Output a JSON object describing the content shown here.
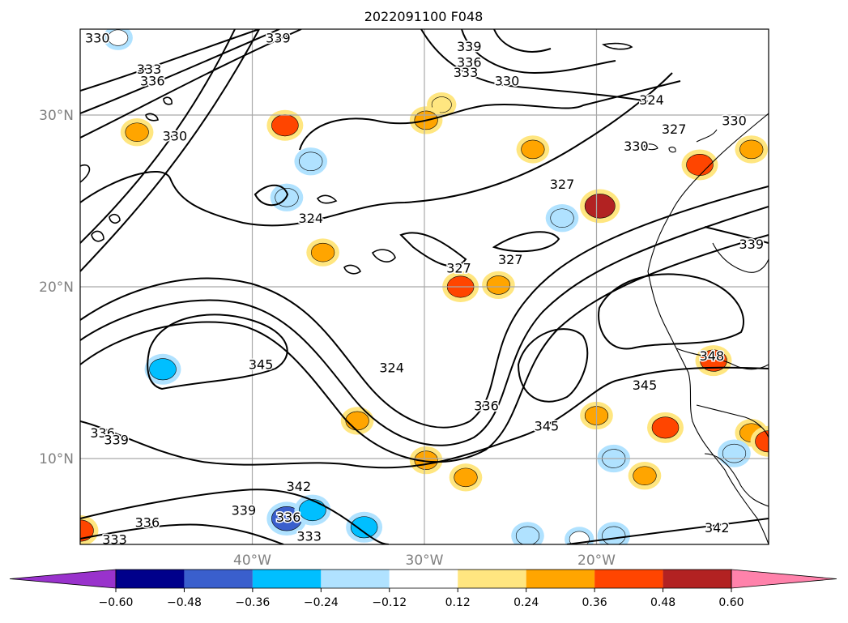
{
  "chart_data": {
    "type": "heatmap",
    "title": "2022091100 F048",
    "map_kind": "filled contour map with overlaid line contours and coastlines",
    "lon_range": [
      -50,
      -10
    ],
    "lat_range": [
      5,
      35
    ],
    "grid": true,
    "lon_ticks": [
      {
        "value": -40,
        "label": "40°W"
      },
      {
        "value": -30,
        "label": "30°W"
      },
      {
        "value": -20,
        "label": "20°W"
      }
    ],
    "lat_ticks": [
      {
        "value": 30,
        "label": "30°N"
      },
      {
        "value": 20,
        "label": "20°N"
      },
      {
        "value": 10,
        "label": "10°N"
      }
    ],
    "colorbar": {
      "orientation": "horizontal",
      "location": "bottom",
      "extend": "both",
      "boundaries": [
        -0.6,
        -0.48,
        -0.36,
        -0.24,
        -0.12,
        0.12,
        0.24,
        0.36,
        0.48,
        0.6
      ],
      "tick_labels": [
        "−0.60",
        "−0.48",
        "−0.36",
        "−0.24",
        "−0.12",
        "0.12",
        "0.24",
        "0.36",
        "0.48",
        "0.60"
      ],
      "colors": [
        "#9932cc",
        "#00008b",
        "#3a5fcd",
        "#00bfff",
        "#b0e2ff",
        "#ffffff",
        "#ffe680",
        "#ffa500",
        "#ff4500",
        "#b22222",
        "#ff82ab"
      ]
    },
    "contour_lines": [
      {
        "label": "330",
        "lon": -49.0,
        "lat": 34.5
      },
      {
        "label": "339",
        "lon": -38.5,
        "lat": 34.5
      },
      {
        "label": "333",
        "lon": -46.0,
        "lat": 32.7
      },
      {
        "label": "336",
        "lon": -45.8,
        "lat": 32.0
      },
      {
        "label": "330",
        "lon": -44.5,
        "lat": 28.8
      },
      {
        "label": "339",
        "lon": -27.4,
        "lat": 34.0
      },
      {
        "label": "336",
        "lon": -27.4,
        "lat": 33.1
      },
      {
        "label": "333",
        "lon": -27.6,
        "lat": 32.5
      },
      {
        "label": "330",
        "lon": -25.2,
        "lat": 32.0
      },
      {
        "label": "324",
        "lon": -16.8,
        "lat": 30.9
      },
      {
        "label": "327",
        "lon": -15.5,
        "lat": 29.2
      },
      {
        "label": "330",
        "lon": -17.7,
        "lat": 28.2
      },
      {
        "label": "330",
        "lon": -12.0,
        "lat": 29.7
      },
      {
        "label": "327",
        "lon": -22.0,
        "lat": 26.0
      },
      {
        "label": "324",
        "lon": -36.6,
        "lat": 24.0
      },
      {
        "label": "339",
        "lon": -11.0,
        "lat": 22.5
      },
      {
        "label": "327",
        "lon": -28.0,
        "lat": 21.1
      },
      {
        "label": "327",
        "lon": -25.0,
        "lat": 21.6
      },
      {
        "label": "345",
        "lon": -39.5,
        "lat": 15.5
      },
      {
        "label": "324",
        "lon": -31.9,
        "lat": 15.3
      },
      {
        "label": "348",
        "lon": -13.3,
        "lat": 16.0
      },
      {
        "label": "345",
        "lon": -17.2,
        "lat": 14.3
      },
      {
        "label": "336",
        "lon": -26.4,
        "lat": 13.1
      },
      {
        "label": "345",
        "lon": -22.9,
        "lat": 11.9
      },
      {
        "label": "336",
        "lon": -48.7,
        "lat": 11.5
      },
      {
        "label": "339",
        "lon": -47.9,
        "lat": 11.1
      },
      {
        "label": "342",
        "lon": -37.3,
        "lat": 8.4
      },
      {
        "label": "339",
        "lon": -40.5,
        "lat": 7.0
      },
      {
        "label": "336",
        "lon": -46.1,
        "lat": 6.3
      },
      {
        "label": "336",
        "lon": -37.9,
        "lat": 6.6
      },
      {
        "label": "333",
        "lon": -36.7,
        "lat": 5.5
      },
      {
        "label": "333",
        "lon": -48.0,
        "lat": 5.3
      },
      {
        "label": "342",
        "lon": -13.0,
        "lat": 6.0
      }
    ],
    "shaded_anomalies": [
      {
        "lon": -38.1,
        "lat": 29.4,
        "value": 0.36
      },
      {
        "lon": -46.7,
        "lat": 29.0,
        "value": 0.24
      },
      {
        "lon": -29.0,
        "lat": 30.6,
        "value": 0.12
      },
      {
        "lon": -29.9,
        "lat": 29.7,
        "value": 0.24
      },
      {
        "lon": -23.7,
        "lat": 28.0,
        "value": 0.24
      },
      {
        "lon": -38.0,
        "lat": 25.2,
        "value": -0.24
      },
      {
        "lon": -36.6,
        "lat": 27.3,
        "value": -0.24
      },
      {
        "lon": -47.8,
        "lat": 34.5,
        "value": -0.12
      },
      {
        "lon": -19.8,
        "lat": 24.7,
        "value": 0.48
      },
      {
        "lon": -14.0,
        "lat": 27.1,
        "value": 0.36
      },
      {
        "lon": -11.0,
        "lat": 28.0,
        "value": 0.24
      },
      {
        "lon": -22.0,
        "lat": 24.0,
        "value": -0.24
      },
      {
        "lon": -35.9,
        "lat": 22.0,
        "value": 0.24
      },
      {
        "lon": -27.9,
        "lat": 20.0,
        "value": 0.36
      },
      {
        "lon": -25.7,
        "lat": 20.1,
        "value": 0.24
      },
      {
        "lon": -45.2,
        "lat": 15.2,
        "value": -0.36
      },
      {
        "lon": -13.2,
        "lat": 15.7,
        "value": 0.36
      },
      {
        "lon": -20.0,
        "lat": 12.5,
        "value": 0.24
      },
      {
        "lon": -33.9,
        "lat": 12.2,
        "value": 0.24
      },
      {
        "lon": -16.0,
        "lat": 11.8,
        "value": 0.36
      },
      {
        "lon": -11.0,
        "lat": 11.5,
        "value": 0.24
      },
      {
        "lon": -12.0,
        "lat": 10.3,
        "value": -0.24
      },
      {
        "lon": -19.0,
        "lat": 10.0,
        "value": -0.24
      },
      {
        "lon": -29.9,
        "lat": 9.9,
        "value": 0.24
      },
      {
        "lon": -27.6,
        "lat": 8.9,
        "value": 0.24
      },
      {
        "lon": -17.2,
        "lat": 9.0,
        "value": 0.24
      },
      {
        "lon": -50.0,
        "lat": 5.8,
        "value": 0.36
      },
      {
        "lon": -10.0,
        "lat": 11.0,
        "value": 0.36
      },
      {
        "lon": -38.0,
        "lat": 6.5,
        "value": -0.48
      },
      {
        "lon": -36.5,
        "lat": 7.0,
        "value": -0.36
      },
      {
        "lon": -33.5,
        "lat": 6.0,
        "value": -0.36
      },
      {
        "lon": -24.0,
        "lat": 5.5,
        "value": -0.24
      },
      {
        "lon": -19.0,
        "lat": 5.5,
        "value": -0.24
      },
      {
        "lon": -21.0,
        "lat": 5.3,
        "value": -0.12
      }
    ]
  }
}
